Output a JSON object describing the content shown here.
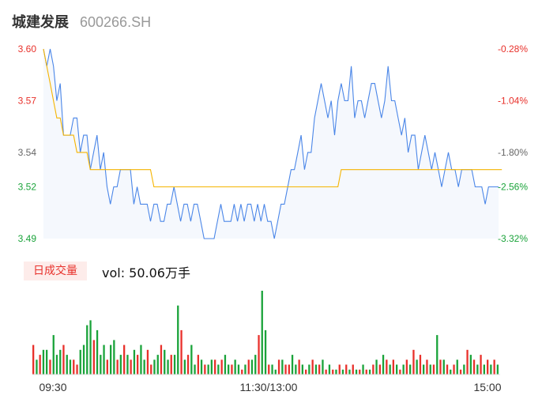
{
  "header": {
    "stock_name": "城建发展",
    "stock_code": "600266.SH"
  },
  "volume_panel": {
    "tag_label": "日成交量",
    "vol_text": "vol: 50.06万手"
  },
  "colors": {
    "price_line": "#4a86e8",
    "avg_line": "#f5b400",
    "up": "#e8312b",
    "down": "#1aa33a",
    "area": "#f5f8fd"
  },
  "chart_data": [
    {
      "type": "line",
      "ylim": [
        3.49,
        3.6
      ],
      "y_tick_labels": [
        "3.60",
        "3.57",
        "3.54",
        "3.52",
        "3.49"
      ],
      "y_tick_values": [
        3.6,
        3.57,
        3.54,
        3.52,
        3.49
      ],
      "y_tick_colors": [
        "#e8312b",
        "#e8312b",
        "#666666",
        "#1aa33a",
        "#1aa33a"
      ],
      "right_tick_labels": [
        "-0.28%",
        "-1.04%",
        "-1.80%",
        "-2.56%",
        "-3.32%"
      ],
      "right_tick_colors": [
        "#e8312b",
        "#e8312b",
        "#666666",
        "#1aa33a",
        "#1aa33a"
      ],
      "x_tick_labels": [
        "09:30",
        "11:30/13:00",
        "15:00"
      ],
      "series": [
        {
          "values": [
            3.6,
            3.59,
            3.6,
            3.59,
            3.57,
            3.58,
            3.55,
            3.55,
            3.55,
            3.56,
            3.56,
            3.54,
            3.55,
            3.55,
            3.53,
            3.54,
            3.55,
            3.53,
            3.54,
            3.52,
            3.51,
            3.52,
            3.52,
            3.53,
            3.53,
            3.53,
            3.53,
            3.51,
            3.52,
            3.51,
            3.51,
            3.51,
            3.5,
            3.51,
            3.51,
            3.5,
            3.5,
            3.51,
            3.51,
            3.52,
            3.51,
            3.5,
            3.51,
            3.51,
            3.5,
            3.51,
            3.51,
            3.5,
            3.49,
            3.49,
            3.49,
            3.49,
            3.5,
            3.51,
            3.5,
            3.5,
            3.5,
            3.51,
            3.5,
            3.51,
            3.5,
            3.51,
            3.51,
            3.5,
            3.51,
            3.5,
            3.51,
            3.5,
            3.5,
            3.49,
            3.5,
            3.51,
            3.51,
            3.52,
            3.53,
            3.53,
            3.54,
            3.55,
            3.53,
            3.54,
            3.54,
            3.56,
            3.57,
            3.58,
            3.57,
            3.56,
            3.57,
            3.55,
            3.57,
            3.58,
            3.57,
            3.57,
            3.59,
            3.56,
            3.57,
            3.57,
            3.56,
            3.57,
            3.58,
            3.58,
            3.57,
            3.56,
            3.57,
            3.59,
            3.57,
            3.57,
            3.56,
            3.55,
            3.56,
            3.54,
            3.55,
            3.55,
            3.53,
            3.54,
            3.55,
            3.54,
            3.53,
            3.54,
            3.53,
            3.52,
            3.53,
            3.54,
            3.53,
            3.53,
            3.52,
            3.53,
            3.53,
            3.53,
            3.53,
            3.52,
            3.52,
            3.52,
            3.51,
            3.52,
            3.52,
            3.52,
            3.52
          ]
        },
        {
          "values": [
            3.6,
            3.59,
            3.58,
            3.57,
            3.56,
            3.56,
            3.55,
            3.55,
            3.55,
            3.55,
            3.54,
            3.54,
            3.54,
            3.54,
            3.53,
            3.53,
            3.53,
            3.53,
            3.53,
            3.53,
            3.53,
            3.53,
            3.53,
            3.53,
            3.53,
            3.53,
            3.53,
            3.53,
            3.53,
            3.53,
            3.53,
            3.53,
            3.53,
            3.52,
            3.52,
            3.52,
            3.52,
            3.52,
            3.52,
            3.52,
            3.52,
            3.52,
            3.52,
            3.52,
            3.52,
            3.52,
            3.52,
            3.52,
            3.52,
            3.52,
            3.52,
            3.52,
            3.52,
            3.52,
            3.52,
            3.52,
            3.52,
            3.52,
            3.52,
            3.52,
            3.52,
            3.52,
            3.52,
            3.52,
            3.52,
            3.52,
            3.52,
            3.52,
            3.52,
            3.52,
            3.52,
            3.52,
            3.52,
            3.52,
            3.52,
            3.52,
            3.52,
            3.52,
            3.52,
            3.52,
            3.52,
            3.52,
            3.52,
            3.52,
            3.52,
            3.52,
            3.52,
            3.52,
            3.52,
            3.53,
            3.53,
            3.53,
            3.53,
            3.53,
            3.53,
            3.53,
            3.53,
            3.53,
            3.53,
            3.53,
            3.53,
            3.53,
            3.53,
            3.53,
            3.53,
            3.53,
            3.53,
            3.53,
            3.53,
            3.53,
            3.53,
            3.53,
            3.53,
            3.53,
            3.53,
            3.53,
            3.53,
            3.53,
            3.53,
            3.53,
            3.53,
            3.53,
            3.53,
            3.53,
            3.53,
            3.53,
            3.53,
            3.53,
            3.53,
            3.53,
            3.53,
            3.53,
            3.53,
            3.53,
            3.53,
            3.53,
            3.53,
            3.53
          ]
        }
      ]
    },
    {
      "type": "bar",
      "values": [
        6,
        3,
        4,
        5,
        5,
        3,
        8,
        4,
        5,
        6,
        4,
        3,
        3,
        2,
        5,
        6,
        10,
        11,
        7,
        9,
        4,
        6,
        3,
        6,
        7,
        3,
        4,
        6,
        4,
        3,
        5,
        4,
        6,
        3,
        5,
        2,
        3,
        4,
        6,
        5,
        3,
        4,
        4,
        14,
        9,
        3,
        4,
        6,
        2,
        4,
        3,
        2,
        2,
        3,
        3,
        2,
        3,
        4,
        2,
        2,
        3,
        2,
        1,
        2,
        3,
        3,
        4,
        8,
        17,
        9,
        2,
        2,
        1,
        3,
        3,
        2,
        2,
        4,
        2,
        3,
        2,
        1,
        2,
        3,
        2,
        2,
        3,
        1,
        2,
        1,
        1,
        2,
        1,
        2,
        1,
        2,
        1,
        1,
        2,
        1,
        1,
        2,
        3,
        2,
        4,
        3,
        2,
        3,
        2,
        1,
        2,
        3,
        2,
        5,
        3,
        4,
        2,
        3,
        2,
        2,
        8,
        3,
        3,
        2,
        1,
        2,
        3,
        1,
        2,
        5,
        4,
        3,
        2,
        4,
        2,
        3,
        2,
        3,
        2
      ],
      "up": [
        1,
        0,
        1,
        0,
        0,
        1,
        0,
        0,
        0,
        1,
        0,
        0,
        1,
        1,
        0,
        0,
        0,
        0,
        1,
        0,
        0,
        0,
        1,
        0,
        0,
        1,
        0,
        1,
        0,
        1,
        0,
        1,
        0,
        0,
        1,
        1,
        0,
        0,
        1,
        0,
        0,
        1,
        0,
        0,
        1,
        0,
        1,
        0,
        0,
        1,
        0,
        1,
        0,
        0,
        1,
        0,
        1,
        0,
        0,
        1,
        0,
        0,
        1,
        0,
        1,
        0,
        0,
        1,
        0,
        0,
        1,
        0,
        0,
        1,
        0,
        1,
        1,
        0,
        0,
        1,
        0,
        1,
        0,
        1,
        0,
        1,
        0,
        1,
        0,
        1,
        0,
        1,
        0,
        1,
        0,
        1,
        0,
        1,
        0,
        1,
        0,
        1,
        0,
        1,
        0,
        1,
        0,
        1,
        0,
        1,
        0,
        1,
        0,
        1,
        0,
        1,
        0,
        1,
        0,
        1,
        0,
        1,
        0,
        1,
        0,
        1,
        0,
        1,
        0,
        1,
        0,
        1,
        0,
        1,
        0,
        1,
        0,
        1,
        0
      ]
    }
  ]
}
